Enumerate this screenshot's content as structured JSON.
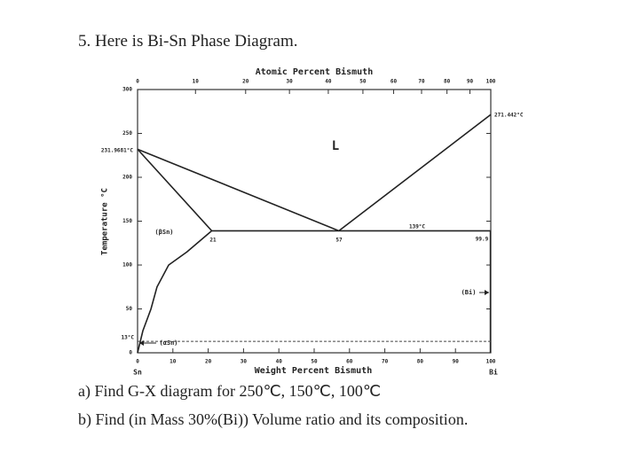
{
  "header": {
    "title": "5. Here is Bi-Sn Phase Diagram."
  },
  "figure": {
    "top_axis_label": "Atomic Percent Bismuth",
    "bottom_axis_label": "Weight Percent Bismuth",
    "y_axis_label": "Temperature °C",
    "left_end_label": "Sn",
    "right_end_label": "Bi",
    "xlim": [
      0,
      100
    ],
    "ylim": [
      0,
      300
    ],
    "xticks": [
      0,
      10,
      20,
      30,
      40,
      50,
      60,
      70,
      80,
      90,
      100
    ],
    "yticks": [
      0,
      50,
      100,
      150,
      200,
      250,
      300
    ],
    "top_ticks": [
      0,
      {
        "value": 16.4,
        "label": "10"
      },
      {
        "value": 30.6,
        "label": "20"
      },
      {
        "value": 43.0,
        "label": "30"
      },
      {
        "value": 54.0,
        "label": "40"
      },
      {
        "value": 63.8,
        "label": "50"
      },
      {
        "value": 72.5,
        "label": "60"
      },
      {
        "value": 80.4,
        "label": "70"
      },
      {
        "value": 87.6,
        "label": "80"
      },
      {
        "value": 94.1,
        "label": "90"
      },
      100
    ],
    "boundaries": [
      {
        "x": [
          0,
          57
        ],
        "y": [
          231.9681,
          139
        ]
      },
      {
        "x": [
          57,
          100
        ],
        "y": [
          139,
          271.442
        ]
      },
      {
        "x": [
          0,
          21
        ],
        "y": [
          231.9681,
          139
        ]
      },
      {
        "x": [
          21,
          99.9
        ],
        "y": [
          139,
          139
        ]
      },
      {
        "x": [
          21,
          14,
          8.8,
          5.5,
          3.8,
          1.5,
          0
        ],
        "y": [
          139,
          115,
          100,
          75,
          50,
          25,
          0
        ]
      },
      {
        "x": [
          99.9,
          99.9
        ],
        "y": [
          139,
          0
        ]
      }
    ],
    "dashed_line": {
      "x": [
        0,
        100
      ],
      "y": [
        13,
        13
      ]
    },
    "annotations": {
      "sn_melt": "231.9681°C",
      "bi_melt": "271.442°C",
      "liquid": "L",
      "beta_sn": "(βSn)",
      "eutectic_left": "21",
      "eutectic": "57",
      "eutectic_temp": "139°C",
      "eutectic_right": "99.9",
      "bi_phase": "(Bi)",
      "alpha_sn": "(αSn)",
      "transition": "13°C"
    }
  },
  "questions": [
    "a) Find G-X diagram for 250℃, 150℃, 100℃",
    "b) Find (in Mass 30%(Bi)) Volume ratio and its composition."
  ]
}
